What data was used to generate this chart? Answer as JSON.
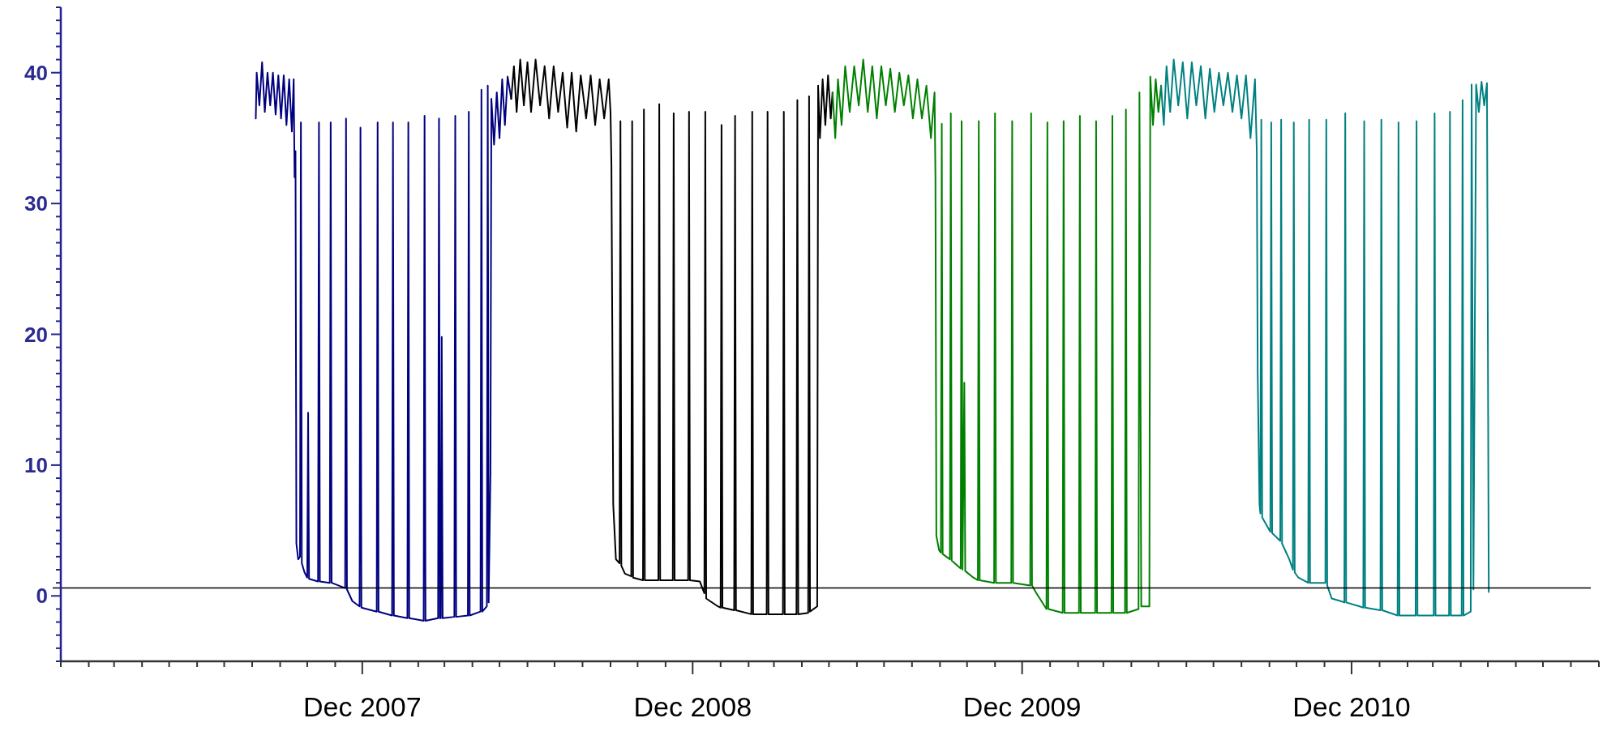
{
  "chart_data": {
    "type": "line",
    "xlim": [
      "2007-01-01",
      "2011-09-01"
    ],
    "ylim": [
      -5,
      45
    ],
    "xticks": [
      {
        "value": "2007-01-01",
        "label": null
      },
      {
        "value": "2007-02-01",
        "label": null
      },
      {
        "value": "2007-03-01",
        "label": null
      },
      {
        "value": "2007-04-01",
        "label": null
      },
      {
        "value": "2007-05-01",
        "label": null
      },
      {
        "value": "2007-06-01",
        "label": null
      },
      {
        "value": "2007-07-01",
        "label": null
      },
      {
        "value": "2007-08-01",
        "label": null
      },
      {
        "value": "2007-09-01",
        "label": null
      },
      {
        "value": "2007-10-01",
        "label": null
      },
      {
        "value": "2007-11-01",
        "label": null
      },
      {
        "value": "2007-12-01",
        "label": "Dec 2007"
      },
      {
        "value": "2008-01-01",
        "label": null
      },
      {
        "value": "2008-02-01",
        "label": null
      },
      {
        "value": "2008-03-01",
        "label": null
      },
      {
        "value": "2008-04-01",
        "label": null
      },
      {
        "value": "2008-05-01",
        "label": null
      },
      {
        "value": "2008-06-01",
        "label": null
      },
      {
        "value": "2008-07-01",
        "label": null
      },
      {
        "value": "2008-08-01",
        "label": null
      },
      {
        "value": "2008-09-01",
        "label": null
      },
      {
        "value": "2008-10-01",
        "label": null
      },
      {
        "value": "2008-11-01",
        "label": null
      },
      {
        "value": "2008-12-01",
        "label": "Dec 2008"
      },
      {
        "value": "2009-01-01",
        "label": null
      },
      {
        "value": "2009-02-01",
        "label": null
      },
      {
        "value": "2009-03-01",
        "label": null
      },
      {
        "value": "2009-04-01",
        "label": null
      },
      {
        "value": "2009-05-01",
        "label": null
      },
      {
        "value": "2009-06-01",
        "label": null
      },
      {
        "value": "2009-07-01",
        "label": null
      },
      {
        "value": "2009-08-01",
        "label": null
      },
      {
        "value": "2009-09-01",
        "label": null
      },
      {
        "value": "2009-10-01",
        "label": null
      },
      {
        "value": "2009-11-01",
        "label": null
      },
      {
        "value": "2009-12-01",
        "label": "Dec 2009"
      },
      {
        "value": "2010-01-01",
        "label": null
      },
      {
        "value": "2010-02-01",
        "label": null
      },
      {
        "value": "2010-03-01",
        "label": null
      },
      {
        "value": "2010-04-01",
        "label": null
      },
      {
        "value": "2010-05-01",
        "label": null
      },
      {
        "value": "2010-06-01",
        "label": null
      },
      {
        "value": "2010-07-01",
        "label": null
      },
      {
        "value": "2010-08-01",
        "label": null
      },
      {
        "value": "2010-09-01",
        "label": null
      },
      {
        "value": "2010-10-01",
        "label": null
      },
      {
        "value": "2010-11-01",
        "label": null
      },
      {
        "value": "2010-12-01",
        "label": "Dec 2010"
      },
      {
        "value": "2011-01-01",
        "label": null
      },
      {
        "value": "2011-02-01",
        "label": null
      },
      {
        "value": "2011-03-01",
        "label": null
      },
      {
        "value": "2011-04-01",
        "label": null
      },
      {
        "value": "2011-05-01",
        "label": null
      },
      {
        "value": "2011-06-01",
        "label": null
      },
      {
        "value": "2011-07-01",
        "label": null
      },
      {
        "value": "2011-08-01",
        "label": null
      },
      {
        "value": "2011-09-01",
        "label": null
      }
    ],
    "yticks": [
      {
        "value": -5,
        "label": null
      },
      {
        "value": -4,
        "label": null
      },
      {
        "value": -3,
        "label": null
      },
      {
        "value": -2,
        "label": null
      },
      {
        "value": -1,
        "label": null
      },
      0,
      {
        "value": 1,
        "label": null
      },
      {
        "value": 2,
        "label": null
      },
      {
        "value": 3,
        "label": null
      },
      {
        "value": 4,
        "label": null
      },
      {
        "value": 5,
        "label": null
      },
      {
        "value": 6,
        "label": null
      },
      {
        "value": 7,
        "label": null
      },
      {
        "value": 8,
        "label": null
      },
      {
        "value": 9,
        "label": null
      },
      10,
      {
        "value": 11,
        "label": null
      },
      {
        "value": 12,
        "label": null
      },
      {
        "value": 13,
        "label": null
      },
      {
        "value": 14,
        "label": null
      },
      {
        "value": 15,
        "label": null
      },
      {
        "value": 16,
        "label": null
      },
      {
        "value": 17,
        "label": null
      },
      {
        "value": 18,
        "label": null
      },
      {
        "value": 19,
        "label": null
      },
      20,
      {
        "value": 21,
        "label": null
      },
      {
        "value": 22,
        "label": null
      },
      {
        "value": 23,
        "label": null
      },
      {
        "value": 24,
        "label": null
      },
      {
        "value": 25,
        "label": null
      },
      {
        "value": 26,
        "label": null
      },
      {
        "value": 27,
        "label": null
      },
      {
        "value": 28,
        "label": null
      },
      {
        "value": 29,
        "label": null
      },
      30,
      {
        "value": 31,
        "label": null
      },
      {
        "value": 32,
        "label": null
      },
      {
        "value": 33,
        "label": null
      },
      {
        "value": 34,
        "label": null
      },
      {
        "value": 35,
        "label": null
      },
      {
        "value": 36,
        "label": null
      },
      {
        "value": 37,
        "label": null
      },
      {
        "value": 38,
        "label": null
      },
      {
        "value": 39,
        "label": null
      },
      40,
      {
        "value": 41,
        "label": null
      },
      {
        "value": 42,
        "label": null
      },
      {
        "value": 43,
        "label": null
      },
      {
        "value": 44,
        "label": null
      },
      {
        "value": 45,
        "label": null
      }
    ],
    "grid": false,
    "marker": "none",
    "line_style": "solid",
    "ref_lines": [
      {
        "axis": "y",
        "value": 0.6,
        "color": "#000000"
      }
    ],
    "series": [
      {
        "color": "#000080",
        "x": [
          "2007-08-05",
          "2007-08-06",
          "2007-08-09",
          "2007-08-12",
          "2007-08-15",
          "2007-08-18",
          "2007-08-21",
          "2007-08-24",
          "2007-08-27",
          "2007-08-30",
          "2007-09-02",
          "2007-09-05",
          "2007-09-08",
          "2007-09-11",
          "2007-09-14",
          "2007-09-16",
          "2007-09-17",
          "2007-09-18",
          "2007-09-19",
          "2007-09-21",
          "2007-09-23",
          "2007-09-24",
          "2007-09-25",
          "2007-09-28",
          "2007-10-01",
          "2007-10-02",
          "2007-10-03",
          "2007-10-13",
          "2007-10-14",
          "2007-10-15",
          "2007-10-26",
          "2007-10-27",
          "2007-10-28",
          "2007-11-12",
          "2007-11-13",
          "2007-11-14",
          "2007-11-20",
          "2007-11-28",
          "2007-11-29",
          "2007-11-30",
          "2007-12-17",
          "2007-12-18",
          "2007-12-19",
          "2008-01-03",
          "2008-01-04",
          "2008-01-05",
          "2008-01-20",
          "2008-01-21",
          "2008-01-22",
          "2008-02-07",
          "2008-02-08",
          "2008-02-09",
          "2008-02-23",
          "2008-02-24",
          "2008-02-25",
          "2008-02-26",
          "2008-02-27",
          "2008-02-28",
          "2008-03-12",
          "2008-03-13",
          "2008-03-14",
          "2008-03-27",
          "2008-03-28",
          "2008-03-29",
          "2008-04-10",
          "2008-04-11",
          "2008-04-12",
          "2008-04-17",
          "2008-04-18",
          "2008-04-19",
          "2008-04-21",
          "2008-04-22",
          "2008-04-25",
          "2008-04-28",
          "2008-05-01",
          "2008-05-04",
          "2008-05-07",
          "2008-05-10",
          "2008-05-14"
        ],
        "values": [
          36.5,
          40,
          37.5,
          40.8,
          37,
          40,
          37.5,
          40,
          36.8,
          39.8,
          36.5,
          39.8,
          36,
          39.5,
          35.5,
          39.5,
          32,
          34,
          4,
          2.8,
          3,
          36.2,
          2.5,
          1.8,
          1.4,
          14,
          1.3,
          1.1,
          36.2,
          1.1,
          1,
          36.2,
          1,
          0.6,
          36.5,
          0.5,
          -0.4,
          -0.8,
          35.8,
          -0.9,
          -1.2,
          36.2,
          -1.2,
          -1.5,
          36.2,
          -1.5,
          -1.7,
          36.2,
          -1.7,
          -1.9,
          36.7,
          -1.9,
          -1.7,
          36.5,
          -1.7,
          -1.7,
          19.8,
          -1.7,
          -1.6,
          36.7,
          -1.6,
          -1.5,
          37,
          -1.5,
          -1.2,
          38.7,
          -1.2,
          -0.8,
          39,
          -0.5,
          9.5,
          38,
          34.5,
          38.5,
          35,
          39.5,
          36,
          39.7,
          38
        ]
      },
      {
        "color": "#000000",
        "x": [
          "2008-05-14",
          "2008-05-17",
          "2008-05-20",
          "2008-05-24",
          "2008-05-28",
          "2008-06-01",
          "2008-06-05",
          "2008-06-10",
          "2008-06-15",
          "2008-06-20",
          "2008-06-25",
          "2008-06-30",
          "2008-07-05",
          "2008-07-10",
          "2008-07-15",
          "2008-07-20",
          "2008-07-25",
          "2008-07-30",
          "2008-08-05",
          "2008-08-10",
          "2008-08-15",
          "2008-08-20",
          "2008-08-25",
          "2008-08-30",
          "2008-09-01",
          "2008-09-02",
          "2008-09-04",
          "2008-09-07",
          "2008-09-11",
          "2008-09-12",
          "2008-09-13",
          "2008-09-17",
          "2008-09-24",
          "2008-09-25",
          "2008-09-26",
          "2008-10-07",
          "2008-10-08",
          "2008-10-09",
          "2008-10-24",
          "2008-10-25",
          "2008-10-26",
          "2008-11-09",
          "2008-11-10",
          "2008-11-11",
          "2008-11-26",
          "2008-11-27",
          "2008-11-28",
          "2008-12-09",
          "2008-12-14",
          "2008-12-15",
          "2008-12-16",
          "2008-12-29",
          "2009-01-01",
          "2009-01-02",
          "2009-01-03",
          "2009-01-16",
          "2009-01-17",
          "2009-01-18",
          "2009-02-04",
          "2009-02-05",
          "2009-02-06",
          "2009-02-21",
          "2009-02-22",
          "2009-02-23",
          "2009-03-11",
          "2009-03-12",
          "2009-03-13",
          "2009-03-26",
          "2009-03-27",
          "2009-03-28",
          "2009-04-08",
          "2009-04-09",
          "2009-04-10",
          "2009-04-18",
          "2009-04-19",
          "2009-04-21",
          "2009-04-24",
          "2009-04-27",
          "2009-04-30",
          "2009-05-03",
          "2009-05-05"
        ],
        "values": [
          38,
          40.5,
          37,
          41,
          37.5,
          40.8,
          37,
          41,
          37.5,
          40.5,
          36.5,
          40.5,
          37,
          40,
          35.8,
          40,
          35.5,
          39.8,
          36.5,
          39.8,
          36,
          39.5,
          36.5,
          39.5,
          37,
          33,
          7,
          2.8,
          2.5,
          36.3,
          2.3,
          1.7,
          1.5,
          36.3,
          1.4,
          1.2,
          37.2,
          1.2,
          1.2,
          37.6,
          1.2,
          1.2,
          36.9,
          1.2,
          1.2,
          37,
          1.2,
          1.1,
          0.2,
          37,
          -0.2,
          -0.8,
          -0.9,
          36,
          -0.9,
          -1.1,
          36.7,
          -1.1,
          -1.4,
          37,
          -1.4,
          -1.4,
          37,
          -1.4,
          -1.4,
          37,
          -1.4,
          -1.4,
          37.9,
          -1.4,
          -1.3,
          38.2,
          -1.2,
          -0.8,
          39,
          35,
          39.5,
          36,
          39.8,
          36.5,
          38.5
        ]
      },
      {
        "color": "#008000",
        "x": [
          "2009-05-05",
          "2009-05-08",
          "2009-05-11",
          "2009-05-15",
          "2009-05-19",
          "2009-05-24",
          "2009-05-29",
          "2009-06-03",
          "2009-06-08",
          "2009-06-13",
          "2009-06-18",
          "2009-06-23",
          "2009-06-28",
          "2009-07-03",
          "2009-07-08",
          "2009-07-13",
          "2009-07-18",
          "2009-07-23",
          "2009-07-28",
          "2009-08-02",
          "2009-08-07",
          "2009-08-12",
          "2009-08-17",
          "2009-08-22",
          "2009-08-26",
          "2009-08-27",
          "2009-08-28",
          "2009-08-31",
          "2009-09-02",
          "2009-09-03",
          "2009-09-04",
          "2009-09-12",
          "2009-09-13",
          "2009-09-14",
          "2009-09-24",
          "2009-09-25",
          "2009-09-26",
          "2009-09-28",
          "2009-09-29",
          "2009-10-08",
          "2009-10-13",
          "2009-10-14",
          "2009-10-15",
          "2009-10-31",
          "2009-11-01",
          "2009-11-02",
          "2009-11-19",
          "2009-11-20",
          "2009-11-21",
          "2009-12-10",
          "2009-12-11",
          "2009-12-12",
          "2009-12-16",
          "2009-12-28",
          "2009-12-29",
          "2009-12-30",
          "2010-01-15",
          "2010-01-16",
          "2010-01-17",
          "2010-02-02",
          "2010-02-03",
          "2010-02-04",
          "2010-02-20",
          "2010-02-21",
          "2010-02-22",
          "2010-03-10",
          "2010-03-11",
          "2010-03-12",
          "2010-03-25",
          "2010-03-26",
          "2010-03-27",
          "2010-04-09",
          "2010-04-10",
          "2010-04-12",
          "2010-04-21",
          "2010-04-22",
          "2010-04-25",
          "2010-04-28",
          "2010-05-01",
          "2010-05-04"
        ],
        "values": [
          38.5,
          35,
          39.5,
          36,
          40.5,
          37,
          40.5,
          37.5,
          41,
          37,
          40.5,
          36.5,
          40.5,
          37.5,
          40.3,
          37,
          40,
          37.5,
          39.8,
          36.5,
          39.5,
          36.5,
          39,
          35,
          38.5,
          31.8,
          4.6,
          3.5,
          3.3,
          36.1,
          3.2,
          2.8,
          36.9,
          2.7,
          2.1,
          36.3,
          2,
          16.3,
          1.9,
          1.4,
          1.2,
          36.3,
          1.2,
          1,
          36.9,
          1,
          1,
          36.3,
          1,
          0.8,
          36.9,
          0.8,
          0.3,
          -1,
          36.2,
          -1,
          -1.3,
          36.3,
          -1.3,
          -1.3,
          36.7,
          -1.3,
          -1.3,
          36.3,
          -1.3,
          -1.3,
          36.7,
          -1.3,
          -1.3,
          37.2,
          -1.3,
          -1,
          38.5,
          -0.8,
          -0.8,
          39.7,
          36,
          39.5,
          37,
          39
        ]
      },
      {
        "color": "#008080",
        "x": [
          "2010-05-04",
          "2010-05-07",
          "2010-05-10",
          "2010-05-14",
          "2010-05-18",
          "2010-05-23",
          "2010-05-28",
          "2010-06-02",
          "2010-06-07",
          "2010-06-12",
          "2010-06-17",
          "2010-06-22",
          "2010-06-27",
          "2010-07-02",
          "2010-07-07",
          "2010-07-12",
          "2010-07-17",
          "2010-07-22",
          "2010-07-27",
          "2010-08-01",
          "2010-08-06",
          "2010-08-11",
          "2010-08-16",
          "2010-08-18",
          "2010-08-19",
          "2010-08-21",
          "2010-08-22",
          "2010-08-23",
          "2010-08-24",
          "2010-09-02",
          "2010-09-03",
          "2010-09-04",
          "2010-09-13",
          "2010-09-14",
          "2010-09-15",
          "2010-09-23",
          "2010-09-27",
          "2010-09-28",
          "2010-09-29",
          "2010-10-03",
          "2010-10-14",
          "2010-10-15",
          "2010-10-16",
          "2010-11-02",
          "2010-11-03",
          "2010-11-04",
          "2010-11-09",
          "2010-11-19",
          "2010-11-23",
          "2010-11-24",
          "2010-11-25",
          "2010-12-10",
          "2010-12-14",
          "2010-12-15",
          "2010-12-16",
          "2011-01-02",
          "2011-01-03",
          "2011-01-04",
          "2011-01-21",
          "2011-01-22",
          "2011-01-23",
          "2011-02-10",
          "2011-02-11",
          "2011-02-12",
          "2011-03-02",
          "2011-03-03",
          "2011-03-04",
          "2011-03-19",
          "2011-03-20",
          "2011-03-21",
          "2011-04-02",
          "2011-04-03",
          "2011-04-04",
          "2011-04-12",
          "2011-04-13",
          "2011-04-15",
          "2011-04-18",
          "2011-04-21",
          "2011-04-24",
          "2011-04-27",
          "2011-04-30",
          "2011-05-02"
        ],
        "values": [
          39,
          36,
          40.5,
          37,
          41,
          37.5,
          40.8,
          36.5,
          40.8,
          37.5,
          40.5,
          36.5,
          40.3,
          37,
          40,
          37.5,
          40,
          37,
          39.8,
          36.5,
          39.8,
          35,
          39.5,
          34,
          17,
          7,
          6.3,
          36.4,
          6,
          4.9,
          36.2,
          4.8,
          4.2,
          36.4,
          4,
          2.8,
          2,
          36.2,
          1.8,
          1.4,
          1,
          36.4,
          1,
          1,
          36.4,
          0.8,
          -0.2,
          -0.4,
          -0.5,
          36.9,
          -0.5,
          -0.8,
          -0.9,
          36.3,
          -0.9,
          -1.1,
          36.4,
          -1.1,
          -1.5,
          36.2,
          -1.5,
          -1.5,
          36.3,
          -1.5,
          -1.5,
          36.9,
          -1.5,
          -1.5,
          37,
          -1.5,
          -1.5,
          37.9,
          -1.5,
          -1.2,
          39.1,
          0.5,
          39.1,
          37,
          39.3,
          37.5,
          39.2,
          0.3
        ]
      }
    ]
  }
}
